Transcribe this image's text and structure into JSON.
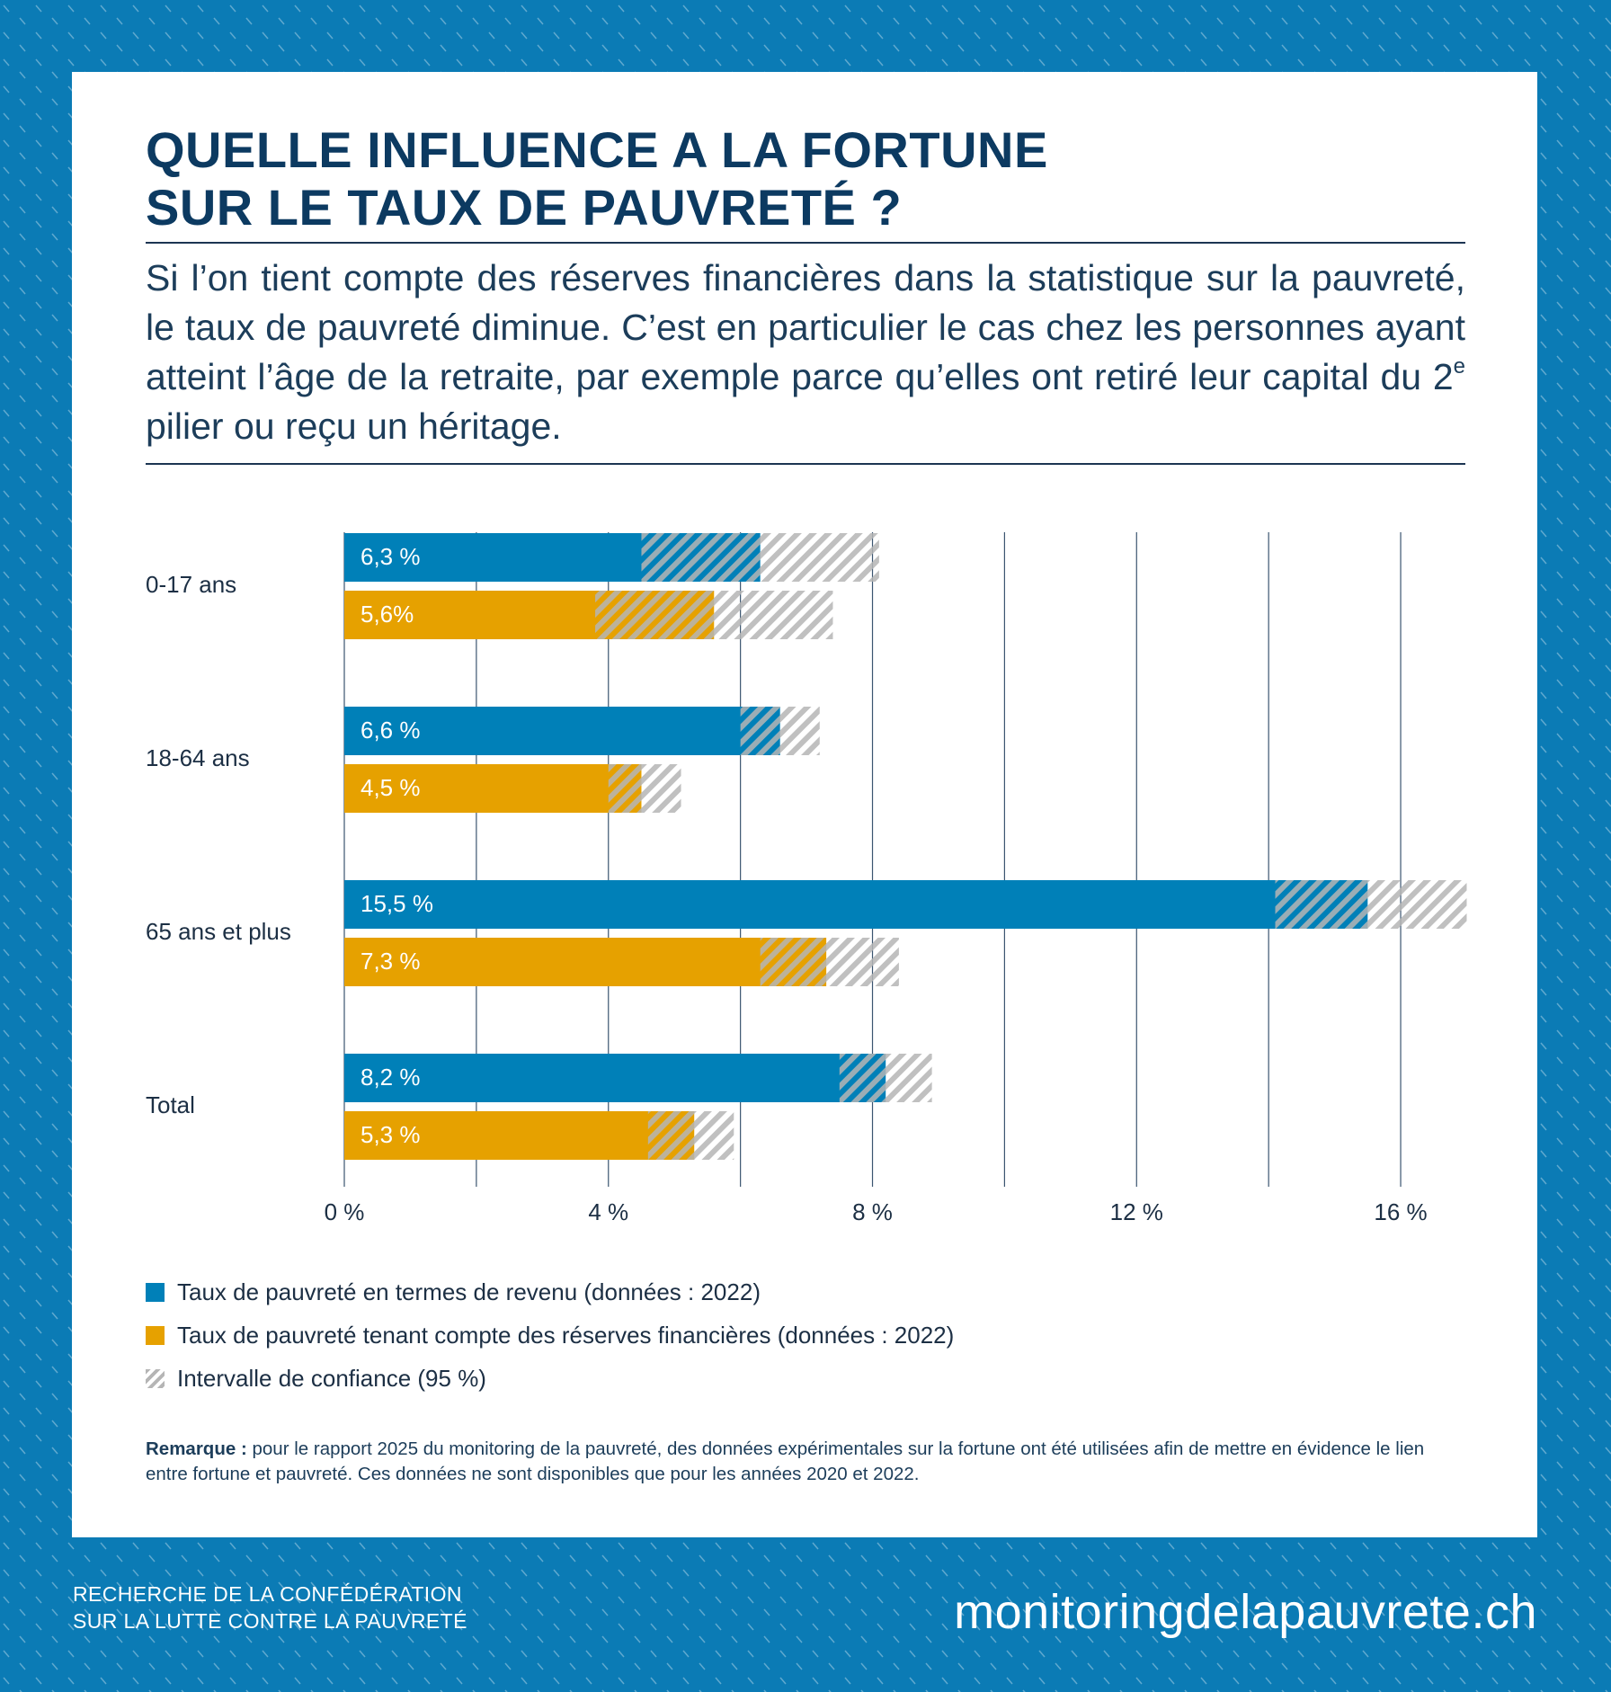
{
  "chart_data": {
    "type": "bar",
    "title": [
      "QUELLE INFLUENCE A LA FORTUNE",
      "SUR LE TAUX DE PAUVRETÉ ?"
    ],
    "subtitle": {
      "before": "Si l’on tient compte des réserves financières dans la statistique sur la pauvreté, le taux de pauvreté diminue. C’est en particulier le cas chez les personnes ayant atteint l’âge de la retraite, par exemple parce qu’elles ont retiré leur capital du 2",
      "sup": "e",
      "after": " pilier ou reçu un héritage."
    },
    "categories": [
      "0-17 ans",
      "18-64 ans",
      "65 ans et plus",
      "Total"
    ],
    "series": [
      {
        "name": "Taux de pauvreté en termes de revenu (données : 2022)",
        "color": "#0080b8",
        "values": [
          6.3,
          6.6,
          15.5,
          8.2
        ],
        "value_labels": [
          "6,3 %",
          "6,6 %",
          "15,5 %",
          "8,2 %"
        ],
        "ci": [
          [
            4.5,
            8.1
          ],
          [
            6.0,
            7.2
          ],
          [
            14.1,
            17.0
          ],
          [
            7.5,
            8.9
          ]
        ]
      },
      {
        "name": "Taux de pauvreté tenant compte des réserves financières (données : 2022)",
        "color": "#e6a100",
        "values": [
          5.6,
          4.5,
          7.3,
          5.3
        ],
        "value_labels": [
          "5,6%",
          "4,5 %",
          "7,3 %",
          "5,3 %"
        ],
        "ci": [
          [
            3.8,
            7.4
          ],
          [
            4.0,
            5.1
          ],
          [
            6.3,
            8.4
          ],
          [
            4.6,
            5.9
          ]
        ]
      }
    ],
    "ci_legend": "Intervalle de confiance (95 %)",
    "ci_color": "#b5b5b5",
    "xlim": [
      0,
      17
    ],
    "xticks": [
      {
        "value": 0,
        "label": "0 %"
      },
      {
        "value": 2,
        "label": null
      },
      {
        "value": 4,
        "label": "4 %"
      },
      {
        "value": 6,
        "label": null
      },
      {
        "value": 8,
        "label": "8 %"
      },
      {
        "value": 10,
        "label": null
      },
      {
        "value": 12,
        "label": "12 %"
      },
      {
        "value": 14,
        "label": null
      },
      {
        "value": 16,
        "label": "16 %"
      }
    ],
    "grid": true,
    "note": {
      "label": "Remarque :",
      "text": "pour le rapport 2025 du monitoring de la pauvreté, des données expérimentales sur la fortune ont été utilisées afin de mettre en évidence le lien entre fortune et pauvreté. Ces données ne sont disponibles que pour les années 2020 et 2022."
    },
    "footer": {
      "lines": [
        "RECHERCHE DE LA CONFÉDÉRATION",
        "SUR LA LUTTE CONTRE LA PAUVRETÉ"
      ],
      "site": "monitoringdelapauvrete.ch"
    }
  }
}
